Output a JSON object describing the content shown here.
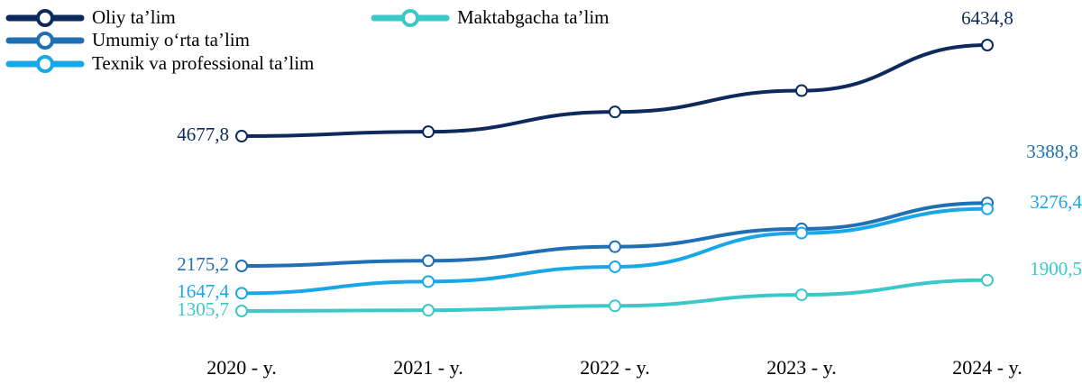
{
  "chart_data": {
    "type": "line",
    "categories": [
      "2020 - y.",
      "2021 - y.",
      "2022 - y.",
      "2023 - y.",
      "2024 - y."
    ],
    "series": [
      {
        "name": "Oliy ta’lim",
        "color": "#0d2a5c",
        "values": [
          4677.8,
          4763,
          5145,
          5556,
          6434.8
        ],
        "value_labels": [
          "4677,8",
          null,
          null,
          null,
          "6434,8"
        ]
      },
      {
        "name": "Umumiy o‘rta ta’lim",
        "color": "#1f6fb5",
        "values": [
          2175.2,
          2275,
          2546,
          2889,
          3388.8
        ],
        "value_labels": [
          "2175,2",
          null,
          null,
          null,
          "3388,8"
        ]
      },
      {
        "name": "Texnik va professional ta’lim",
        "color": "#1aa7e8",
        "values": [
          1647.4,
          1874,
          2158,
          2809,
          3276.4
        ],
        "value_labels": [
          "1647,4",
          null,
          null,
          null,
          "3276,4"
        ]
      },
      {
        "name": "Maktabgacha ta’lim",
        "color": "#3cc8c8",
        "values": [
          1305.7,
          1320,
          1405,
          1617,
          1900.5
        ],
        "value_labels": [
          "1305,7",
          null,
          null,
          null,
          "1900,5"
        ]
      }
    ]
  }
}
